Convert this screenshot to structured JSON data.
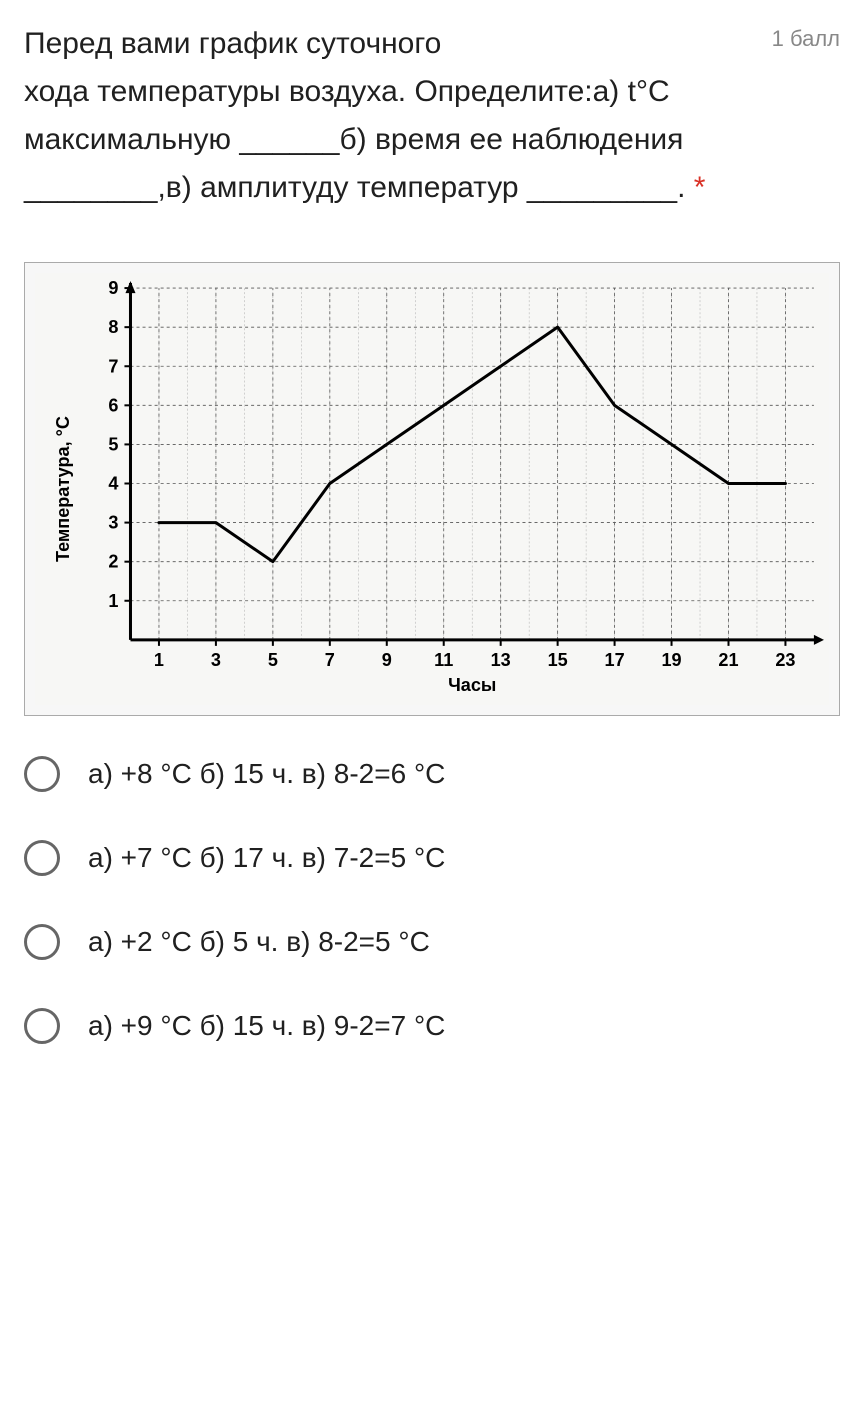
{
  "question": {
    "text_line1": "Перед вами график суточного",
    "text_rest": "хода температуры воздуха. Определите:а) t°С максимальную ______б) время ее наблюдения ________,в) амплитуду температур _________.",
    "points": "1 балл",
    "required_mark": "*"
  },
  "chart": {
    "type": "line",
    "ylabel": "Температура, °С",
    "xlabel": "Часы",
    "xlim": [
      0,
      24
    ],
    "ylim": [
      0,
      9
    ],
    "xtick_labels": [
      "1",
      "3",
      "5",
      "7",
      "9",
      "11",
      "13",
      "15",
      "17",
      "19",
      "21",
      "23"
    ],
    "xtick_positions": [
      1,
      3,
      5,
      7,
      9,
      11,
      13,
      15,
      17,
      19,
      21,
      23
    ],
    "ytick_labels": [
      "1",
      "2",
      "3",
      "4",
      "5",
      "6",
      "7",
      "8",
      "9"
    ],
    "ytick_positions": [
      1,
      2,
      3,
      4,
      5,
      6,
      7,
      8,
      9
    ],
    "data_points": [
      {
        "x": 1,
        "y": 3
      },
      {
        "x": 3,
        "y": 3
      },
      {
        "x": 5,
        "y": 2
      },
      {
        "x": 7,
        "y": 4
      },
      {
        "x": 9,
        "y": 5
      },
      {
        "x": 11,
        "y": 6
      },
      {
        "x": 13,
        "y": 7
      },
      {
        "x": 15,
        "y": 8
      },
      {
        "x": 17,
        "y": 6
      },
      {
        "x": 19,
        "y": 5
      },
      {
        "x": 21,
        "y": 4
      },
      {
        "x": 23,
        "y": 4
      }
    ],
    "background_color": "#f7f7f5",
    "grid_color_major": "#555555",
    "grid_color_minor": "#aaaaaa",
    "axis_color": "#000000",
    "line_color": "#000000",
    "line_width": 3,
    "axis_width": 3,
    "label_fontsize": 18,
    "tick_fontsize": 18
  },
  "options": [
    {
      "label": "а) +8 °С б) 15 ч. в) 8-2=6 °С"
    },
    {
      "label": "а) +7 °С б) 17 ч. в) 7-2=5 °С"
    },
    {
      "label": "а) +2 °С б) 5 ч. в) 8-2=5 °С"
    },
    {
      "label": "а) +9 °С б) 15 ч. в) 9-2=7 °С"
    }
  ]
}
